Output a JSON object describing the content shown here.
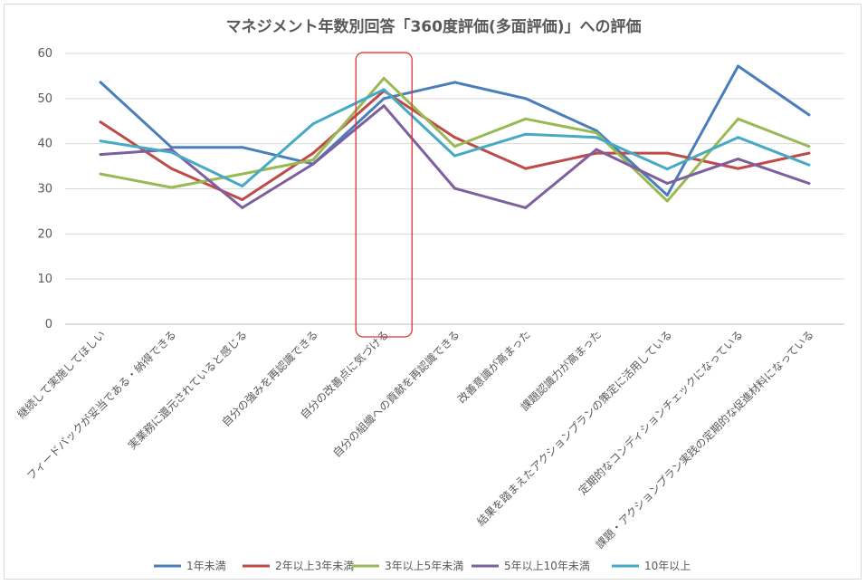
{
  "chart_data": {
    "type": "line",
    "title": "マネジメント年数別回答「360度評価(多面評価)」への評価",
    "xlabel": "",
    "ylabel": "",
    "ylim": [
      0,
      60
    ],
    "yticks": [
      0,
      10,
      20,
      30,
      40,
      50,
      60
    ],
    "grid": true,
    "legend_position": "bottom",
    "categories": [
      "継続して実施してほしい",
      "フィードバックが妥当である・納得できる",
      "実業務に還元されていると感じる",
      "自分の強みを再認識できる",
      "自分の改善点に気づける",
      "自分の組織への貢献を再認識できる",
      "改善意識が高まった",
      "課題認識力が高まった",
      "結果を踏まえたアクションプランの策定に活用している",
      "定期的なコンディションチェックになっている",
      "課題・アクションプラン実践の定期的な促進材料になっている"
    ],
    "highlight_category_index": 4,
    "series": [
      {
        "name": "1年未満",
        "color": "#4a7ebb",
        "values": [
          53.6,
          39.2,
          39.2,
          35.5,
          50.0,
          53.6,
          50.0,
          42.9,
          28.6,
          57.2,
          46.4
        ]
      },
      {
        "name": "2年以上3年未満",
        "color": "#be4b48",
        "values": [
          44.8,
          34.5,
          27.6,
          37.9,
          51.7,
          41.4,
          34.5,
          37.9,
          37.9,
          34.5,
          37.9
        ]
      },
      {
        "name": "3年以上5年未満",
        "color": "#98b954",
        "values": [
          33.3,
          30.3,
          33.3,
          36.4,
          54.5,
          39.4,
          45.5,
          42.4,
          27.3,
          45.5,
          39.4
        ]
      },
      {
        "name": "5年以上10年未満",
        "color": "#7d5fa0",
        "values": [
          37.6,
          38.7,
          25.8,
          35.5,
          48.4,
          30.1,
          25.8,
          38.7,
          31.2,
          36.6,
          31.2
        ]
      },
      {
        "name": "10年以上",
        "color": "#46aac5",
        "values": [
          40.6,
          38.1,
          30.6,
          44.4,
          52.0,
          37.3,
          42.1,
          41.4,
          34.4,
          41.4,
          35.3
        ]
      }
    ]
  }
}
